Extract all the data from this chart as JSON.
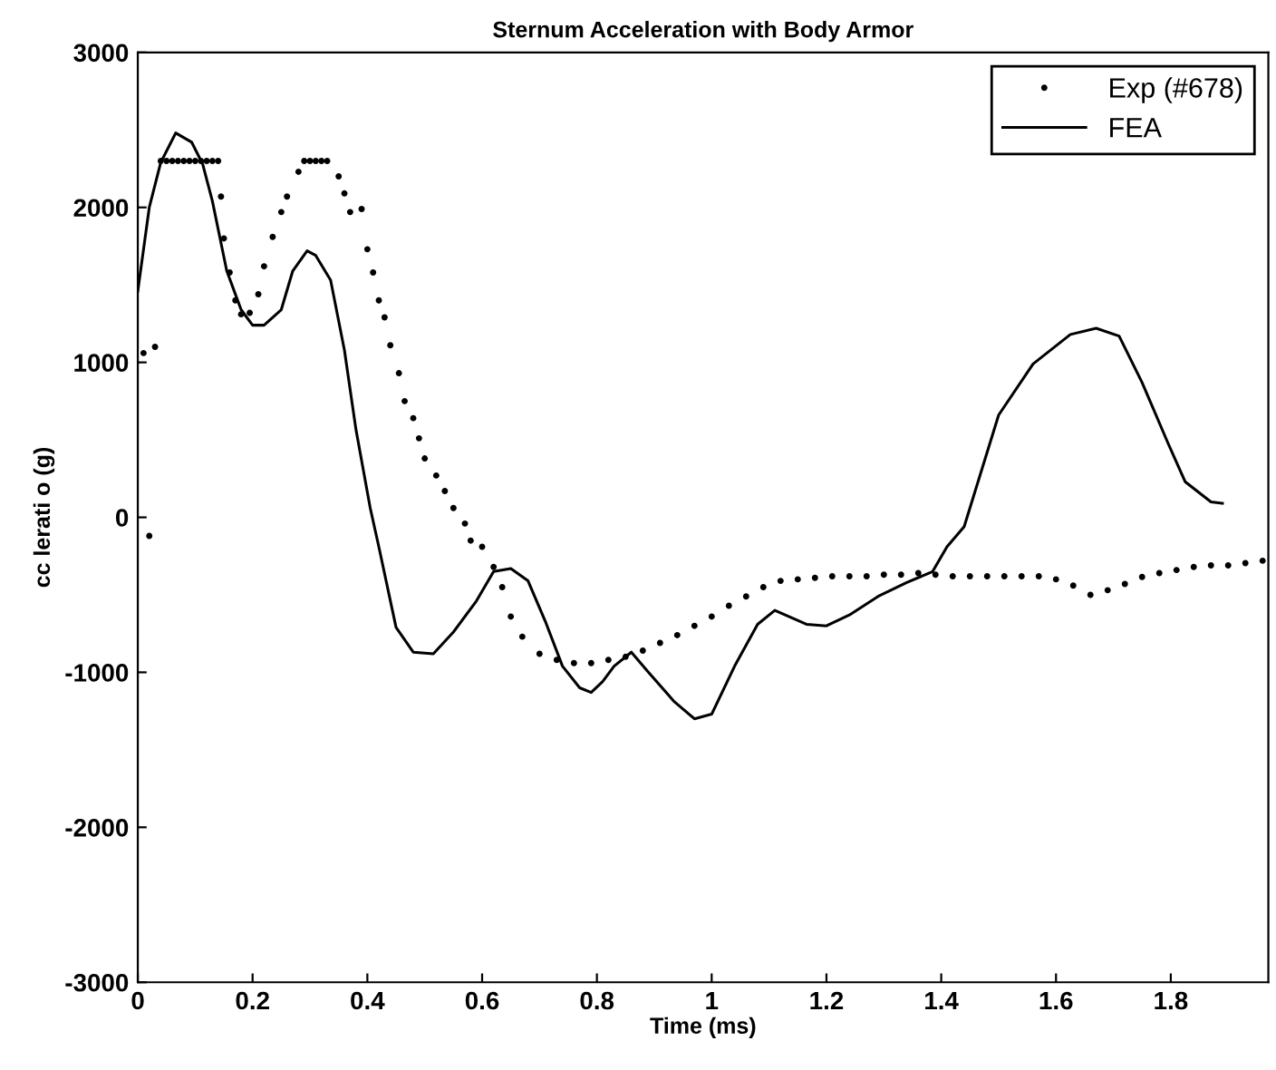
{
  "chart_data": {
    "type": "line",
    "title": "Sternum Acceleration with Body Armor",
    "xlabel": "Time (ms)",
    "ylabel": "cc lerati o (g)",
    "xlim": [
      0,
      1.97
    ],
    "ylim": [
      -3000,
      3000
    ],
    "xticks": [
      0,
      0.2,
      0.4,
      0.6,
      0.8,
      1,
      1.2,
      1.4,
      1.6,
      1.8
    ],
    "yticks": [
      -3000,
      -2000,
      -1000,
      0,
      1000,
      2000,
      3000
    ],
    "grid": false,
    "legend": "top right",
    "series": [
      {
        "name": "Exp (#678)",
        "type": "scatter",
        "marker": "circle",
        "color": "#000000",
        "x": [
          0.01,
          0.02,
          0.03,
          0.04,
          0.05,
          0.06,
          0.07,
          0.08,
          0.09,
          0.1,
          0.11,
          0.12,
          0.13,
          0.14,
          0.145,
          0.15,
          0.16,
          0.17,
          0.18,
          0.195,
          0.21,
          0.22,
          0.235,
          0.25,
          0.26,
          0.28,
          0.29,
          0.3,
          0.31,
          0.32,
          0.33,
          0.35,
          0.36,
          0.37,
          0.39,
          0.4,
          0.41,
          0.42,
          0.43,
          0.44,
          0.455,
          0.465,
          0.48,
          0.49,
          0.5,
          0.52,
          0.535,
          0.55,
          0.57,
          0.58,
          0.6,
          0.62,
          0.635,
          0.65,
          0.67,
          0.7,
          0.73,
          0.76,
          0.79,
          0.82,
          0.85,
          0.88,
          0.91,
          0.94,
          0.97,
          1.0,
          1.03,
          1.06,
          1.09,
          1.12,
          1.15,
          1.18,
          1.21,
          1.24,
          1.27,
          1.3,
          1.33,
          1.36,
          1.39,
          1.42,
          1.45,
          1.48,
          1.51,
          1.54,
          1.57,
          1.6,
          1.63,
          1.66,
          1.69,
          1.72,
          1.75,
          1.78,
          1.81,
          1.84,
          1.87,
          1.9,
          1.93,
          1.96
        ],
        "values": [
          1060,
          -120,
          1100,
          2300,
          2300,
          2300,
          2300,
          2300,
          2300,
          2300,
          2300,
          2300,
          2300,
          2300,
          2070,
          1800,
          1580,
          1400,
          1310,
          1320,
          1440,
          1620,
          1810,
          1970,
          2070,
          2230,
          2300,
          2300,
          2300,
          2300,
          2300,
          2200,
          2090,
          1970,
          1990,
          1730,
          1580,
          1400,
          1290,
          1110,
          930,
          750,
          640,
          510,
          380,
          270,
          170,
          60,
          -40,
          -150,
          -190,
          -320,
          -450,
          -640,
          -770,
          -880,
          -920,
          -940,
          -940,
          -920,
          -900,
          -860,
          -810,
          -760,
          -700,
          -640,
          -570,
          -510,
          -450,
          -410,
          -400,
          -390,
          -380,
          -380,
          -380,
          -370,
          -370,
          -360,
          -370,
          -380,
          -380,
          -380,
          -380,
          -380,
          -380,
          -400,
          -440,
          -500,
          -470,
          -430,
          -385,
          -360,
          -340,
          -320,
          -310,
          -310,
          -295,
          -280
        ]
      },
      {
        "name": "FEA",
        "marker": "none",
        "line_style": "solid",
        "color": "#000000",
        "x": [
          0,
          0.02,
          0.04,
          0.066,
          0.094,
          0.113,
          0.13,
          0.155,
          0.18,
          0.2,
          0.22,
          0.25,
          0.27,
          0.295,
          0.31,
          0.336,
          0.36,
          0.38,
          0.405,
          0.42,
          0.45,
          0.48,
          0.515,
          0.55,
          0.59,
          0.62,
          0.65,
          0.68,
          0.71,
          0.74,
          0.77,
          0.79,
          0.81,
          0.83,
          0.86,
          0.89,
          0.935,
          0.97,
          1.0,
          1.04,
          1.08,
          1.11,
          1.165,
          1.2,
          1.24,
          1.29,
          1.34,
          1.385,
          1.41,
          1.44,
          1.5,
          1.56,
          1.625,
          1.67,
          1.71,
          1.75,
          1.795,
          1.825,
          1.87,
          1.89
        ],
        "values": [
          1460,
          2000,
          2290,
          2480,
          2420,
          2280,
          2040,
          1590,
          1340,
          1240,
          1240,
          1340,
          1590,
          1720,
          1690,
          1530,
          1080,
          570,
          60,
          -190,
          -710,
          -870,
          -880,
          -740,
          -540,
          -350,
          -330,
          -410,
          -670,
          -960,
          -1100,
          -1130,
          -1060,
          -960,
          -870,
          -1000,
          -1190,
          -1300,
          -1270,
          -960,
          -690,
          -600,
          -690,
          -700,
          -630,
          -510,
          -420,
          -350,
          -190,
          -60,
          660,
          990,
          1180,
          1220,
          1170,
          870,
          480,
          230,
          100,
          90
        ]
      }
    ]
  }
}
